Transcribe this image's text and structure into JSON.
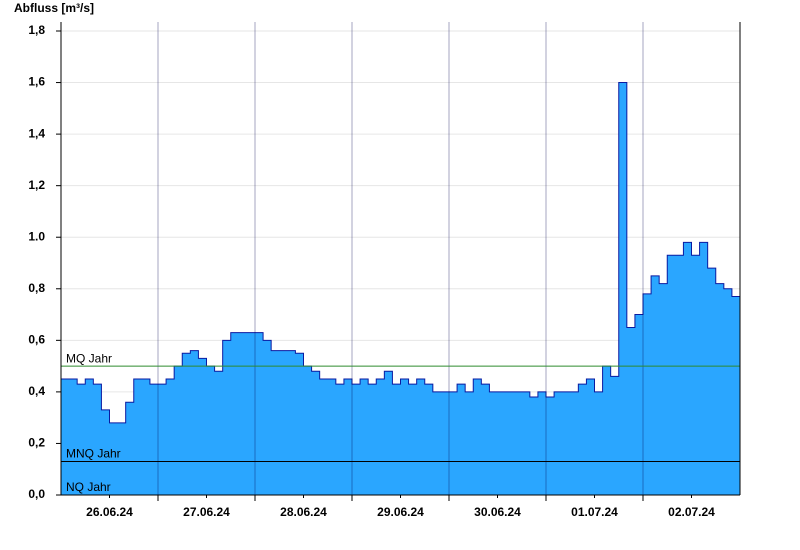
{
  "chart_data": {
    "type": "step-area",
    "y_label": "Abfluss [m³/s]",
    "ylim": [
      0,
      1.8
    ],
    "yticks": [
      {
        "value": 0,
        "label": "0,0"
      },
      {
        "value": 0.2,
        "label": "0,2"
      },
      {
        "value": 0.4,
        "label": "0,4"
      },
      {
        "value": 0.6,
        "label": "0,6"
      },
      {
        "value": 0.8,
        "label": "0,8"
      },
      {
        "value": 1.0,
        "label": "1.0"
      },
      {
        "value": 1.2,
        "label": "1,2"
      },
      {
        "value": 1.4,
        "label": "1,4"
      },
      {
        "value": 1.6,
        "label": "1,6"
      },
      {
        "value": 1.8,
        "label": "1,8"
      }
    ],
    "grid": true,
    "categories": [
      "26.06.24",
      "27.06.24",
      "28.06.24",
      "29.06.24",
      "30.06.24",
      "01.07.24",
      "02.07.24"
    ],
    "color": "#2aa6ff",
    "line_color": "#0a1aa0",
    "values": [
      [
        0.45,
        0.45,
        0.43,
        0.45,
        0.43,
        0.33,
        0.28,
        0.28,
        0.36,
        0.45,
        0.45,
        0.43
      ],
      [
        0.43,
        0.45,
        0.5,
        0.55,
        0.56,
        0.53,
        0.5,
        0.48,
        0.6,
        0.63,
        0.63,
        0.63
      ],
      [
        0.63,
        0.6,
        0.56,
        0.56,
        0.56,
        0.55,
        0.5,
        0.48,
        0.45,
        0.45,
        0.43,
        0.45
      ],
      [
        0.43,
        0.45,
        0.43,
        0.45,
        0.48,
        0.43,
        0.45,
        0.43,
        0.45,
        0.43,
        0.4,
        0.4
      ],
      [
        0.4,
        0.43,
        0.4,
        0.45,
        0.43,
        0.4,
        0.4,
        0.4,
        0.4,
        0.4,
        0.38,
        0.4
      ],
      [
        0.38,
        0.4,
        0.4,
        0.4,
        0.43,
        0.45,
        0.4,
        0.5,
        0.46,
        1.6,
        0.65,
        0.7
      ],
      [
        0.78,
        0.85,
        0.82,
        0.93,
        0.93,
        0.98,
        0.93,
        0.98,
        0.88,
        0.82,
        0.8,
        0.77
      ]
    ],
    "reference_lines": [
      {
        "name": "MQ Jahr",
        "value": 0.5,
        "color": "#2e8b2e"
      },
      {
        "name": "MNQ Jahr",
        "value": 0.13,
        "color": "#000000"
      },
      {
        "name": "NQ Jahr",
        "value": 0,
        "color": "#000000"
      }
    ]
  }
}
